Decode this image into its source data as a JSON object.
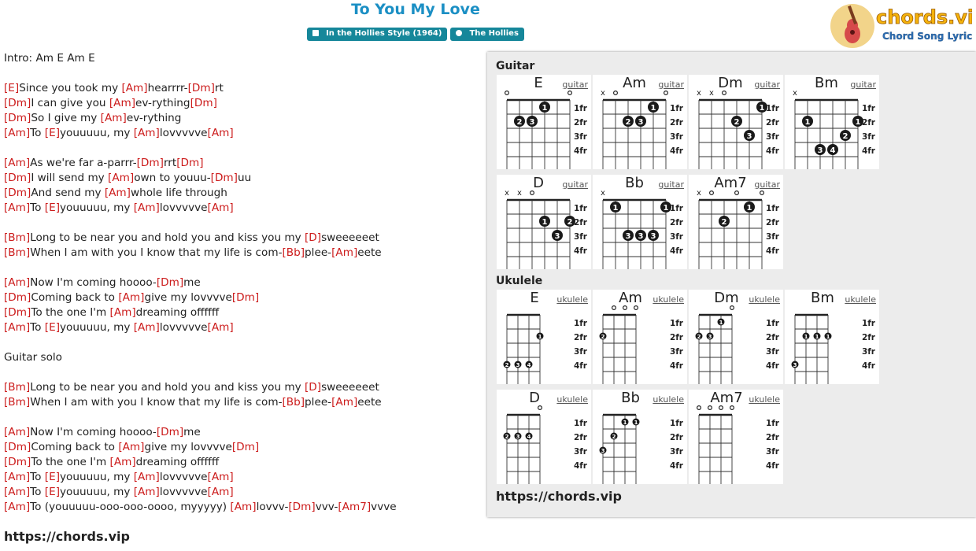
{
  "song_title": "To You My Love",
  "badges": [
    {
      "icon": "book-icon",
      "label": "In the Hollies Style (1964)"
    },
    {
      "icon": "person-icon",
      "label": "The Hollies"
    }
  ],
  "logo": {
    "text": "chords.vip",
    "subtext": "Chord Song Lyric",
    "icon": "guitar-logo-icon"
  },
  "colors": {
    "title": "#1b8fc4",
    "badge": "#16879a",
    "chord": "#cc1b1b",
    "panel": "#ececec"
  },
  "lyrics": [
    [
      {
        "t": "Intro: Am E Am E"
      }
    ],
    [],
    [
      {
        "c": "[E]"
      },
      {
        "t": "Since you took my "
      },
      {
        "c": "[Am]"
      },
      {
        "t": "hearrrr-"
      },
      {
        "c": "[Dm]"
      },
      {
        "t": "rt"
      }
    ],
    [
      {
        "c": "[Dm]"
      },
      {
        "t": "I can give you "
      },
      {
        "c": "[Am]"
      },
      {
        "t": "ev-rything"
      },
      {
        "c": "[Dm]"
      }
    ],
    [
      {
        "c": "[Dm]"
      },
      {
        "t": "So I give my "
      },
      {
        "c": "[Am]"
      },
      {
        "t": "ev-rything"
      }
    ],
    [
      {
        "c": "[Am]"
      },
      {
        "t": "To "
      },
      {
        "c": "[E]"
      },
      {
        "t": "youuuuu, my "
      },
      {
        "c": "[Am]"
      },
      {
        "t": "lovvvvve"
      },
      {
        "c": "[Am]"
      }
    ],
    [],
    [
      {
        "c": "[Am]"
      },
      {
        "t": "As we're far a-parrr-"
      },
      {
        "c": "[Dm]"
      },
      {
        "t": "rrt"
      },
      {
        "c": "[Dm]"
      }
    ],
    [
      {
        "c": "[Dm]"
      },
      {
        "t": "I will send my "
      },
      {
        "c": "[Am]"
      },
      {
        "t": "own to youuu-"
      },
      {
        "c": "[Dm]"
      },
      {
        "t": "uu"
      }
    ],
    [
      {
        "c": "[Dm]"
      },
      {
        "t": "And send my "
      },
      {
        "c": "[Am]"
      },
      {
        "t": "whole life through"
      }
    ],
    [
      {
        "c": "[Am]"
      },
      {
        "t": "To "
      },
      {
        "c": "[E]"
      },
      {
        "t": "youuuuu, my "
      },
      {
        "c": "[Am]"
      },
      {
        "t": "lovvvvve"
      },
      {
        "c": "[Am]"
      }
    ],
    [],
    [
      {
        "c": "[Bm]"
      },
      {
        "t": "Long to be near you and hold you and kiss you my "
      },
      {
        "c": "[D]"
      },
      {
        "t": "sweeeeeet"
      }
    ],
    [
      {
        "c": "[Bm]"
      },
      {
        "t": "When I am with you I know that my life is com-"
      },
      {
        "c": "[Bb]"
      },
      {
        "t": "plee-"
      },
      {
        "c": "[Am]"
      },
      {
        "t": "eete"
      }
    ],
    [],
    [
      {
        "c": "[Am]"
      },
      {
        "t": "Now I'm coming hoooo-"
      },
      {
        "c": "[Dm]"
      },
      {
        "t": "me"
      }
    ],
    [
      {
        "c": "[Dm]"
      },
      {
        "t": "Coming back to "
      },
      {
        "c": "[Am]"
      },
      {
        "t": "give my lovvvve"
      },
      {
        "c": "[Dm]"
      }
    ],
    [
      {
        "c": "[Dm]"
      },
      {
        "t": "To the one I'm "
      },
      {
        "c": "[Am]"
      },
      {
        "t": "dreaming offffff"
      }
    ],
    [
      {
        "c": "[Am]"
      },
      {
        "t": "To "
      },
      {
        "c": "[E]"
      },
      {
        "t": "youuuuu, my "
      },
      {
        "c": "[Am]"
      },
      {
        "t": "lovvvvve"
      },
      {
        "c": "[Am]"
      }
    ],
    [],
    [
      {
        "t": "Guitar solo"
      }
    ],
    [],
    [
      {
        "c": "[Bm]"
      },
      {
        "t": "Long to be near you and hold you and kiss you my "
      },
      {
        "c": "[D]"
      },
      {
        "t": "sweeeeeet"
      }
    ],
    [
      {
        "c": "[Bm]"
      },
      {
        "t": "When I am with you I know that my life is com-"
      },
      {
        "c": "[Bb]"
      },
      {
        "t": "plee-"
      },
      {
        "c": "[Am]"
      },
      {
        "t": "eete"
      }
    ],
    [],
    [
      {
        "c": "[Am]"
      },
      {
        "t": "Now I'm coming hoooo-"
      },
      {
        "c": "[Dm]"
      },
      {
        "t": "me"
      }
    ],
    [
      {
        "c": "[Dm]"
      },
      {
        "t": "Coming back to "
      },
      {
        "c": "[Am]"
      },
      {
        "t": "give my lovvvve"
      },
      {
        "c": "[Dm]"
      }
    ],
    [
      {
        "c": "[Dm]"
      },
      {
        "t": "To the one I'm "
      },
      {
        "c": "[Am]"
      },
      {
        "t": "dreaming offffff"
      }
    ],
    [
      {
        "c": "[Am]"
      },
      {
        "t": "To "
      },
      {
        "c": "[E]"
      },
      {
        "t": "youuuuu, my "
      },
      {
        "c": "[Am]"
      },
      {
        "t": "lovvvvve"
      },
      {
        "c": "[Am]"
      }
    ],
    [
      {
        "c": "[Am]"
      },
      {
        "t": "To "
      },
      {
        "c": "[E]"
      },
      {
        "t": "youuuuu, my "
      },
      {
        "c": "[Am]"
      },
      {
        "t": "lovvvvve"
      },
      {
        "c": "[Am]"
      }
    ],
    [
      {
        "c": "[Am]"
      },
      {
        "t": "To (youuuuu-ooo-ooo-oooo, myyyyy) "
      },
      {
        "c": "[Am]"
      },
      {
        "t": "lovvv-"
      },
      {
        "c": "[Dm]"
      },
      {
        "t": "vvv-"
      },
      {
        "c": "[Am7]"
      },
      {
        "t": "vvve"
      }
    ]
  ],
  "site_url": "https://chords.vip",
  "panel": {
    "guitar_label": "Guitar",
    "ukulele_label": "Ukulele",
    "site_url": "https://chords.vip",
    "fret_labels": [
      "1fr",
      "2fr",
      "3fr",
      "4fr"
    ],
    "guitar": [
      {
        "name": "E",
        "inst": "guitar",
        "top": [
          "o",
          "",
          "",
          "",
          "",
          "o"
        ],
        "dots": [
          [
            3,
            1,
            "1"
          ],
          [
            1,
            2,
            "2"
          ],
          [
            2,
            2,
            "3"
          ]
        ]
      },
      {
        "name": "Am",
        "inst": "guitar",
        "top": [
          "x",
          "o",
          "",
          "",
          "",
          "o"
        ],
        "dots": [
          [
            4,
            1,
            "1"
          ],
          [
            2,
            2,
            "2"
          ],
          [
            3,
            2,
            "3"
          ]
        ]
      },
      {
        "name": "Dm",
        "inst": "guitar",
        "top": [
          "x",
          "x",
          "o",
          "",
          "",
          ""
        ],
        "dots": [
          [
            5,
            1,
            "1"
          ],
          [
            3,
            2,
            "2"
          ],
          [
            4,
            3,
            "3"
          ]
        ]
      },
      {
        "name": "Bm",
        "inst": "guitar",
        "top": [
          "x",
          "",
          "",
          "",
          "",
          ""
        ],
        "dots": [
          [
            1,
            2,
            "1"
          ],
          [
            5,
            2,
            "1"
          ],
          [
            4,
            3,
            "2"
          ],
          [
            2,
            4,
            "3"
          ],
          [
            3,
            4,
            "4"
          ]
        ]
      },
      {
        "name": "D",
        "inst": "guitar",
        "top": [
          "x",
          "x",
          "o",
          "",
          "",
          ""
        ],
        "dots": [
          [
            3,
            2,
            "1"
          ],
          [
            5,
            2,
            "2"
          ],
          [
            4,
            3,
            "3"
          ]
        ]
      },
      {
        "name": "Bb",
        "inst": "guitar",
        "top": [
          "x",
          "",
          "",
          "",
          "",
          ""
        ],
        "dots": [
          [
            1,
            1,
            "1"
          ],
          [
            5,
            1,
            "1"
          ],
          [
            2,
            3,
            "3"
          ],
          [
            3,
            3,
            "3"
          ],
          [
            4,
            3,
            "3"
          ]
        ]
      },
      {
        "name": "Am7",
        "inst": "guitar",
        "top": [
          "x",
          "o",
          "",
          "o",
          "",
          "o"
        ],
        "dots": [
          [
            4,
            1,
            "1"
          ],
          [
            2,
            2,
            "2"
          ]
        ]
      }
    ],
    "ukulele": [
      {
        "name": "E",
        "inst": "ukulele",
        "top": [
          "",
          "",
          "",
          ""
        ],
        "dots": [
          [
            3,
            2,
            "1"
          ],
          [
            0,
            4,
            "2"
          ],
          [
            1,
            4,
            "3"
          ],
          [
            2,
            4,
            "4"
          ]
        ]
      },
      {
        "name": "Am",
        "inst": "ukulele",
        "top": [
          "",
          "o",
          "o",
          "o"
        ],
        "dots": [
          [
            0,
            2,
            "2"
          ]
        ]
      },
      {
        "name": "Dm",
        "inst": "ukulele",
        "top": [
          "",
          "",
          "",
          "o"
        ],
        "dots": [
          [
            2,
            1,
            "1"
          ],
          [
            0,
            2,
            "2"
          ],
          [
            1,
            2,
            "3"
          ]
        ]
      },
      {
        "name": "Bm",
        "inst": "ukulele",
        "top": [
          "",
          "",
          "",
          ""
        ],
        "dots": [
          [
            1,
            2,
            "1"
          ],
          [
            2,
            2,
            "1"
          ],
          [
            3,
            2,
            "1"
          ],
          [
            0,
            4,
            "3"
          ]
        ]
      },
      {
        "name": "D",
        "inst": "ukulele",
        "top": [
          "",
          "",
          "",
          "o"
        ],
        "dots": [
          [
            0,
            2,
            "2"
          ],
          [
            1,
            2,
            "3"
          ],
          [
            2,
            2,
            "4"
          ]
        ]
      },
      {
        "name": "Bb",
        "inst": "ukulele",
        "top": [
          "",
          "",
          "",
          ""
        ],
        "dots": [
          [
            2,
            1,
            "1"
          ],
          [
            3,
            1,
            "1"
          ],
          [
            1,
            2,
            "2"
          ],
          [
            0,
            3,
            "3"
          ]
        ]
      },
      {
        "name": "Am7",
        "inst": "ukulele",
        "top": [
          "o",
          "o",
          "o",
          "o"
        ],
        "dots": []
      }
    ]
  }
}
